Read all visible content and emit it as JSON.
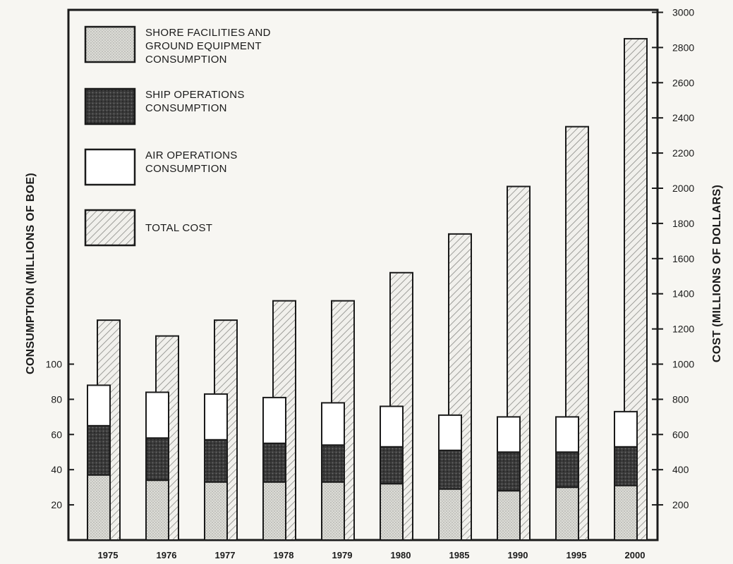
{
  "chart_data": {
    "type": "bar",
    "categories": [
      "1975",
      "1976",
      "1977",
      "1978",
      "1979",
      "1980",
      "1985",
      "1990",
      "1995",
      "2000"
    ],
    "series": [
      {
        "name": "SHORE FACILITIES AND GROUND EQUIPMENT CONSUMPTION",
        "label_lines": [
          "SHORE FACILITIES AND",
          "GROUND EQUIPMENT",
          "CONSUMPTION"
        ],
        "axis": "left",
        "stack": "consumption",
        "color": "#d9d9d4",
        "values": [
          37,
          34,
          33,
          33,
          33,
          32,
          29,
          28,
          30,
          31
        ]
      },
      {
        "name": "SHIP OPERATIONS CONSUMPTION",
        "label_lines": [
          "SHIP OPERATIONS",
          "CONSUMPTION"
        ],
        "axis": "left",
        "stack": "consumption",
        "color": "#2a2a2a",
        "values": [
          28,
          24,
          24,
          22,
          21,
          21,
          22,
          22,
          20,
          22
        ]
      },
      {
        "name": "AIR OPERATIONS CONSUMPTION",
        "label_lines": [
          "AIR OPERATIONS",
          "CONSUMPTION"
        ],
        "axis": "left",
        "stack": "consumption",
        "color": "#ffffff",
        "values": [
          23,
          26,
          26,
          26,
          24,
          23,
          20,
          20,
          20,
          20
        ]
      },
      {
        "name": "TOTAL COST",
        "label_lines": [
          "TOTAL COST"
        ],
        "axis": "right",
        "color": "#e9e9e4",
        "values": [
          1250,
          1160,
          1250,
          1360,
          1360,
          1520,
          1740,
          2010,
          2350,
          2850
        ]
      }
    ],
    "ylabel": "CONSUMPTION (MILLIONS OF BOE)",
    "ylabel_right": "COST (MILLIONS OF DOLLARS)",
    "ylim": [
      0,
      120
    ],
    "yticks": [
      "20",
      "40",
      "60",
      "80",
      "100"
    ],
    "ylim_right": [
      0,
      3000
    ],
    "yticks_right": [
      "200",
      "400",
      "600",
      "800",
      "1000",
      "1200",
      "1400",
      "1600",
      "1800",
      "2000",
      "2200",
      "2400",
      "2600",
      "2800",
      "3000"
    ],
    "legend_position": "top-left",
    "grid": false
  }
}
